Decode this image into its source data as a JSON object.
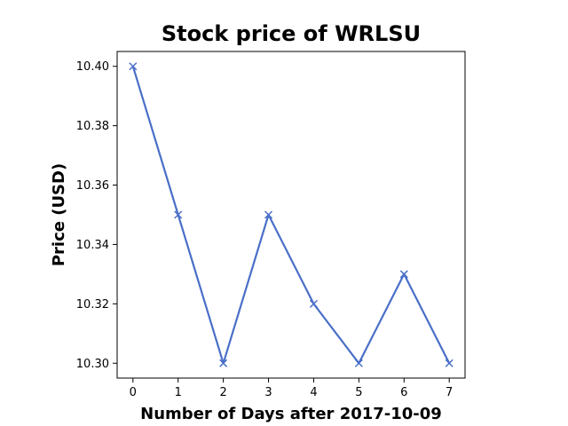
{
  "chart_data": {
    "type": "line",
    "title": "Stock price of WRLSU",
    "xlabel": "Number of Days after 2017-10-09",
    "ylabel": "Price (USD)",
    "x": [
      0,
      1,
      2,
      3,
      4,
      5,
      6,
      7
    ],
    "series": [
      {
        "values": [
          10.4,
          10.35,
          10.3,
          10.35,
          10.32,
          10.3,
          10.33,
          10.3
        ],
        "color": "#4a6fc8",
        "marker": "x"
      }
    ],
    "xticks": [
      0,
      1,
      2,
      3,
      4,
      5,
      6,
      7
    ],
    "xtick_labels": [
      "0",
      "1",
      "2",
      "3",
      "4",
      "5",
      "6",
      "7"
    ],
    "yticks": [
      10.3,
      10.32,
      10.34,
      10.36,
      10.38,
      10.4
    ],
    "ytick_labels": [
      "10.30",
      "10.32",
      "10.34",
      "10.36",
      "10.38",
      "10.40"
    ],
    "xlim": [
      -0.35,
      7.35
    ],
    "ylim": [
      10.295,
      10.405
    ],
    "grid": false,
    "legend": "none"
  }
}
